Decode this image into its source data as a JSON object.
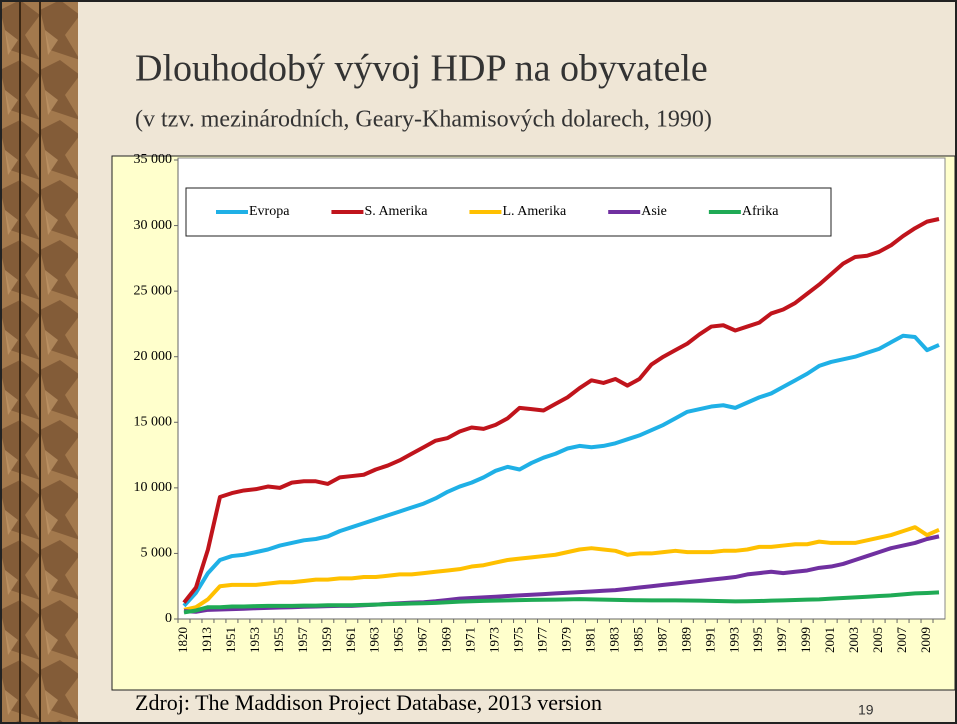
{
  "chart_data": {
    "type": "line",
    "title": "Dlouhodobý vývoj HDP na obyvatele",
    "subtitle": "(v tzv. mezinárodních, Geary-Khamisových dolarech, 1990)",
    "source": "Zdroj: The Maddison Project Database, 2013 version",
    "page_number": "19",
    "categories": [
      "1820",
      null,
      "1913",
      null,
      "1951",
      null,
      "1953",
      null,
      "1955",
      null,
      "1957",
      null,
      "1959",
      null,
      "1961",
      null,
      "1963",
      null,
      "1965",
      null,
      "1967",
      null,
      "1969",
      null,
      "1971",
      null,
      "1973",
      null,
      "1975",
      null,
      "1977",
      null,
      "1979",
      null,
      "1981",
      null,
      "1983",
      null,
      "1985",
      null,
      "1987",
      null,
      "1989",
      null,
      "1991",
      null,
      "1993",
      null,
      "1995",
      null,
      "1997",
      null,
      "1999",
      null,
      "2001",
      null,
      "2003",
      null,
      "2005",
      null,
      "2007",
      null,
      "2009",
      null
    ],
    "series": [
      {
        "name": "Evropa",
        "color": "#1fb0e6",
        "values": [
          1000,
          2000,
          3500,
          4500,
          4800,
          4900,
          5100,
          5300,
          5600,
          5800,
          6000,
          6100,
          6300,
          6700,
          7000,
          7300,
          7600,
          7900,
          8200,
          8500,
          8800,
          9200,
          9700,
          10100,
          10400,
          10800,
          11300,
          11600,
          11400,
          11900,
          12300,
          12600,
          13000,
          13200,
          13100,
          13200,
          13400,
          13700,
          14000,
          14400,
          14800,
          15300,
          15800,
          16000,
          16200,
          16300,
          16100,
          16500,
          16900,
          17200,
          17700,
          18200,
          18700,
          19300,
          19600,
          19800,
          20000,
          20300,
          20600,
          21100,
          21600,
          21500,
          20500,
          20900
        ]
      },
      {
        "name": "S. Amerika",
        "color": "#c0141c",
        "values": [
          1250,
          2400,
          5300,
          9300,
          9600,
          9800,
          9900,
          10100,
          10000,
          10400,
          10500,
          10500,
          10300,
          10800,
          10900,
          11000,
          11400,
          11700,
          12100,
          12600,
          13100,
          13600,
          13800,
          14300,
          14600,
          14500,
          14800,
          15300,
          16100,
          16000,
          15900,
          16400,
          16900,
          17600,
          18200,
          18000,
          18300,
          17800,
          18300,
          19400,
          20000,
          20500,
          21000,
          21700,
          22300,
          22400,
          22000,
          22300,
          22600,
          23300,
          23600,
          24100,
          24800,
          25500,
          26300,
          27100,
          27600,
          27700,
          28000,
          28500,
          29200,
          29800,
          30300,
          30500
        ]
      },
      {
        "name": "L. Amerika",
        "color": "#ffc000",
        "values": [
          700,
          900,
          1500,
          2500,
          2600,
          2600,
          2600,
          2700,
          2800,
          2800,
          2900,
          3000,
          3000,
          3100,
          3100,
          3200,
          3200,
          3300,
          3400,
          3400,
          3500,
          3600,
          3700,
          3800,
          4000,
          4100,
          4300,
          4500,
          4600,
          4700,
          4800,
          4900,
          5100,
          5300,
          5400,
          5300,
          5200,
          4900,
          5000,
          5000,
          5100,
          5200,
          5100,
          5100,
          5100,
          5200,
          5200,
          5300,
          5500,
          5500,
          5600,
          5700,
          5700,
          5900,
          5800,
          5800,
          5800,
          6000,
          6200,
          6400,
          6700,
          7000,
          6400,
          6800
        ]
      },
      {
        "name": "Asie",
        "color": "#7030a0",
        "values": [
          600,
          550,
          700,
          720,
          750,
          780,
          820,
          850,
          880,
          900,
          930,
          950,
          980,
          1000,
          1000,
          1050,
          1100,
          1150,
          1200,
          1250,
          1280,
          1350,
          1450,
          1550,
          1600,
          1650,
          1700,
          1750,
          1800,
          1850,
          1900,
          1950,
          2000,
          2050,
          2100,
          2150,
          2200,
          2300,
          2400,
          2500,
          2600,
          2700,
          2800,
          2900,
          3000,
          3100,
          3200,
          3400,
          3500,
          3600,
          3500,
          3600,
          3700,
          3900,
          4000,
          4200,
          4500,
          4800,
          5100,
          5400,
          5600,
          5800,
          6100,
          6300
        ]
      },
      {
        "name": "Afrika",
        "color": "#1faa55",
        "values": [
          500,
          650,
          900,
          900,
          950,
          950,
          980,
          1000,
          1000,
          1000,
          1020,
          1020,
          1050,
          1050,
          1050,
          1080,
          1100,
          1130,
          1150,
          1180,
          1200,
          1230,
          1280,
          1320,
          1350,
          1380,
          1400,
          1420,
          1440,
          1460,
          1470,
          1480,
          1500,
          1520,
          1500,
          1480,
          1460,
          1440,
          1430,
          1420,
          1420,
          1420,
          1410,
          1400,
          1380,
          1360,
          1340,
          1350,
          1370,
          1400,
          1420,
          1450,
          1480,
          1500,
          1550,
          1600,
          1650,
          1700,
          1750,
          1800,
          1880,
          1950,
          1980,
          2030
        ]
      }
    ],
    "ylim": [
      0,
      35000
    ],
    "yticks": [
      0,
      {
        "value": 5000,
        "label": "5 000"
      },
      {
        "value": 10000,
        "label": "10 000"
      },
      {
        "value": 15000,
        "label": "15 000"
      },
      {
        "value": 20000,
        "label": "20 000"
      },
      {
        "value": 25000,
        "label": "25 000"
      },
      {
        "value": 30000,
        "label": "30 000"
      },
      {
        "value": 35000,
        "label": "35 000"
      }
    ],
    "grid": false,
    "legend": "top-left"
  }
}
